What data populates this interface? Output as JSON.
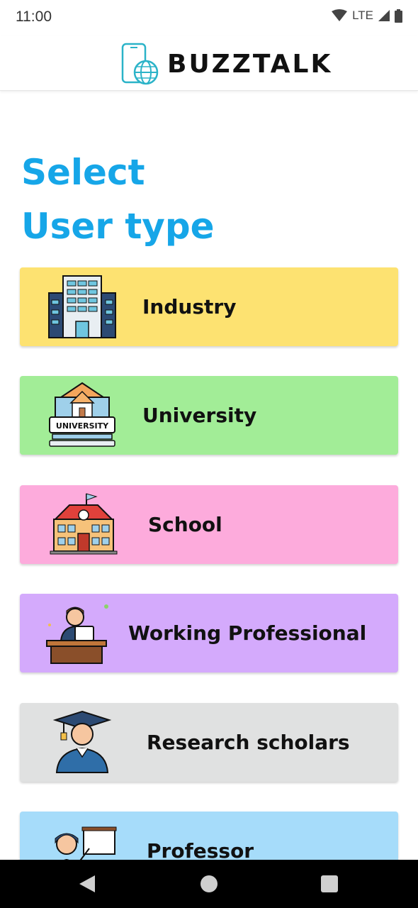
{
  "status": {
    "time": "11:00",
    "network": "LTE",
    "signal_badge": "4"
  },
  "header": {
    "app_name": "BUZZTALK"
  },
  "page": {
    "title_line1": "Select",
    "title_line2": "User type"
  },
  "user_types": [
    {
      "label": "Industry",
      "bg": "#fde271",
      "icon": "building-icon"
    },
    {
      "label": "University",
      "bg": "#a2ed97",
      "icon": "university-icon"
    },
    {
      "label": "School",
      "bg": "#fdabdc",
      "icon": "school-icon"
    },
    {
      "label": "Working Professional",
      "bg": "#d4aafc",
      "icon": "professional-icon"
    },
    {
      "label": "Research scholars",
      "bg": "#e0e1e1",
      "icon": "graduate-icon"
    },
    {
      "label": "Professor",
      "bg": "#a6dcfa",
      "icon": "professor-icon"
    }
  ],
  "colors": {
    "title": "#16a6e8",
    "nav_bar": "#000000"
  }
}
